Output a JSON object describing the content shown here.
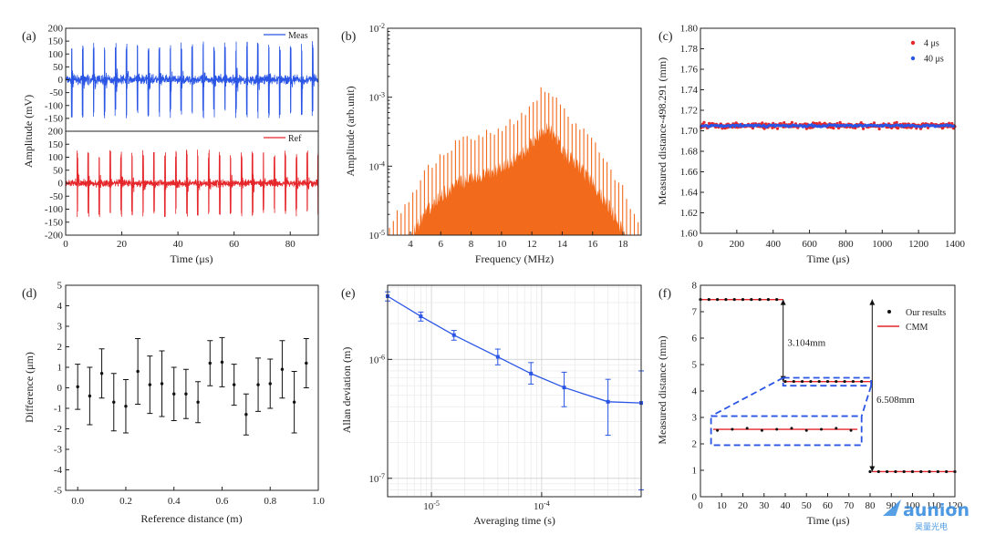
{
  "figure": {
    "panel_labels": [
      "(a)",
      "(b)",
      "(c)",
      "(d)",
      "(e)",
      "(f)"
    ],
    "watermark_text": "aunion",
    "watermark_sub": "昊量光电"
  },
  "chart_data": [
    {
      "panel": "a-top",
      "type": "line",
      "xlabel": "Time (μs)",
      "ylabel": "Amplitude (mV)",
      "xlim": [
        0,
        90
      ],
      "ylim": [
        -200,
        200
      ],
      "xticks": [
        0,
        20,
        40,
        60,
        80
      ],
      "yticks": [
        -200,
        -150,
        -100,
        -50,
        0,
        50,
        100,
        150,
        200
      ],
      "series": [
        {
          "name": "Meas",
          "color": "#2a55e5",
          "description": "pulse train",
          "pulse_period_us": 3.9,
          "first_pulse_us": 2,
          "peak_amplitude_mv": 150,
          "noise_amplitude_mv": 25
        }
      ]
    },
    {
      "panel": "a-bottom",
      "type": "line",
      "xlabel": "Time (μs)",
      "ylabel": "Amplitude (mV)",
      "xlim": [
        0,
        90
      ],
      "ylim": [
        -200,
        200
      ],
      "xticks": [
        0,
        20,
        40,
        60,
        80
      ],
      "yticks": [
        -200,
        -150,
        -100,
        -50,
        0,
        50,
        100,
        150,
        200
      ],
      "series": [
        {
          "name": "Ref",
          "color": "#e5262a",
          "description": "pulse train",
          "pulse_period_us": 3.9,
          "first_pulse_us": 4,
          "peak_amplitude_mv": 130,
          "noise_amplitude_mv": 20
        }
      ]
    },
    {
      "panel": "b",
      "type": "bar",
      "xlabel": "Frequency (MHz)",
      "ylabel": "Amplitude (arb.unit)",
      "xlim": [
        2.5,
        19.2
      ],
      "ylim_log": [
        1e-05,
        0.01
      ],
      "yscale": "log",
      "xticks": [
        4,
        6,
        8,
        10,
        12,
        14,
        16,
        18
      ],
      "ytick_labels": [
        "10-5",
        "10-4",
        "10-3",
        "10-2"
      ],
      "color": "#f26a1b",
      "comb_spacing_mhz": 0.256,
      "peak_envelope": [
        [
          2.6,
          1.3e-05
        ],
        [
          3,
          2e-05
        ],
        [
          4,
          4e-05
        ],
        [
          5,
          9e-05
        ],
        [
          6,
          0.00016
        ],
        [
          7,
          0.00023
        ],
        [
          8,
          0.00029
        ],
        [
          9,
          0.00032
        ],
        [
          10,
          0.0004
        ],
        [
          11,
          0.00055
        ],
        [
          12,
          0.0009
        ],
        [
          12.6,
          0.0014
        ],
        [
          13,
          0.0015
        ],
        [
          13.6,
          0.0011
        ],
        [
          14,
          0.0007
        ],
        [
          15,
          0.00045
        ],
        [
          16,
          0.00025
        ],
        [
          17,
          0.00012
        ],
        [
          18,
          5e-05
        ],
        [
          19,
          2e-05
        ]
      ]
    },
    {
      "panel": "c",
      "type": "scatter",
      "xlabel": "Time (μs)",
      "ylabel": "Measured distance-498.291 (mm)",
      "xlim": [
        0,
        1400
      ],
      "ylim": [
        1.6,
        1.8
      ],
      "xticks": [
        0,
        200,
        400,
        600,
        800,
        1000,
        1200,
        1400
      ],
      "yticks": [
        1.6,
        1.62,
        1.64,
        1.66,
        1.68,
        1.7,
        1.72,
        1.74,
        1.76,
        1.78,
        1.8
      ],
      "ytick_labels": [
        "1.60",
        "1.62",
        "1.64",
        "1.66",
        "1.68",
        "1.70",
        "1.72",
        "1.74",
        "1.76",
        "1.78",
        "1.80"
      ],
      "legend": "top-right",
      "series": [
        {
          "name": "4 μs",
          "color": "#e5262a",
          "mean": 1.705,
          "spread": 0.004,
          "step_us": 4
        },
        {
          "name": "40 μs",
          "color": "#2a55e5",
          "mean": 1.705,
          "spread": 0.0015,
          "step_us": 8
        }
      ]
    },
    {
      "panel": "d",
      "type": "scatter",
      "xlabel": "Reference distance (m)",
      "ylabel": "Difference (μm)",
      "xlim": [
        -0.05,
        1.0
      ],
      "ylim": [
        -5,
        5
      ],
      "xticks": [
        0.0,
        0.2,
        0.4,
        0.6,
        0.8,
        1.0
      ],
      "xtick_labels": [
        "0.0",
        "0.2",
        "0.4",
        "0.6",
        "0.8",
        "1.0"
      ],
      "yticks": [
        -5,
        -4,
        -3,
        -2,
        -1,
        0,
        1,
        2,
        3,
        4,
        5
      ],
      "x": [
        0.0,
        0.05,
        0.1,
        0.15,
        0.2,
        0.25,
        0.3,
        0.35,
        0.4,
        0.45,
        0.5,
        0.55,
        0.6,
        0.65,
        0.7,
        0.75,
        0.8,
        0.85,
        0.9,
        0.95
      ],
      "y": [
        0.05,
        -0.4,
        0.7,
        -0.7,
        -0.9,
        0.8,
        0.15,
        0.2,
        -0.3,
        -0.3,
        -0.7,
        1.2,
        1.25,
        0.15,
        -1.3,
        0.15,
        0.2,
        0.9,
        -0.7,
        1.2
      ],
      "yerr": [
        1.1,
        1.4,
        1.2,
        1.4,
        1.3,
        1.6,
        1.4,
        1.6,
        1.3,
        1.2,
        1.0,
        1.1,
        1.2,
        1.0,
        1.0,
        1.3,
        1.2,
        1.4,
        1.5,
        1.2
      ]
    },
    {
      "panel": "e",
      "type": "line",
      "xlabel": "Averaging time (s)",
      "ylabel": "Allan deviation (m)",
      "xscale": "log",
      "yscale": "log",
      "xlim_log": [
        4e-06,
        0.0008
      ],
      "ylim_log": [
        7e-08,
        4.2e-06
      ],
      "xtick_values": [
        1e-05,
        0.0001
      ],
      "xtick_labels": [
        "10-5",
        "10-4"
      ],
      "ytick_values": [
        1e-07,
        1e-06
      ],
      "ytick_labels": [
        "10-7",
        "10-6"
      ],
      "color": "#2a55e5",
      "x": [
        4e-06,
        8e-06,
        1.6e-05,
        4e-05,
        8e-05,
        0.00016,
        0.0004,
        0.0008
      ],
      "y": [
        3.4e-06,
        2.3e-06,
        1.6e-06,
        1.05e-06,
        7.6e-07,
        5.8e-07,
        4.4e-07,
        4.3e-07
      ],
      "yerr_low": [
        3.1e-06,
        2.1e-06,
        1.45e-06,
        9e-07,
        6.2e-07,
        4e-07,
        2.3e-07,
        8e-08
      ],
      "yerr_high": [
        3.7e-06,
        2.5e-06,
        1.75e-06,
        1.22e-06,
        9.4e-07,
        7.8e-07,
        6.8e-07,
        8e-07
      ]
    },
    {
      "panel": "f",
      "type": "line",
      "xlabel": "Time (μs)",
      "ylabel": "Measured distance (mm)",
      "xlim": [
        0,
        120
      ],
      "ylim": [
        0,
        8
      ],
      "xticks": [
        0,
        10,
        20,
        30,
        40,
        50,
        60,
        70,
        80,
        90,
        100,
        110,
        120
      ],
      "yticks": [
        0,
        1,
        2,
        3,
        4,
        5,
        6,
        7,
        8
      ],
      "legend": "top-right",
      "series": [
        {
          "name": "Our results",
          "color": "#111111",
          "x": [
            0,
            4,
            8,
            12,
            16,
            20,
            24,
            28,
            32,
            36,
            40,
            44,
            48,
            52,
            56,
            60,
            64,
            68,
            72,
            76,
            80,
            84,
            88,
            92,
            96,
            100,
            104,
            108,
            112,
            116,
            120
          ],
          "y": [
            7.46,
            7.46,
            7.46,
            7.46,
            7.46,
            7.46,
            7.46,
            7.46,
            7.46,
            7.46,
            4.36,
            4.36,
            4.36,
            4.36,
            4.36,
            4.36,
            4.36,
            4.36,
            4.36,
            4.36,
            0.95,
            0.95,
            0.95,
            0.95,
            0.95,
            0.95,
            0.95,
            0.95,
            0.95,
            0.95,
            0.95
          ]
        },
        {
          "name": "CMM",
          "color": "#e5262a",
          "segments": [
            [
              0,
              39,
              7.46
            ],
            [
              39,
              81,
              4.356
            ],
            [
              81,
              120,
              0.95
            ]
          ]
        }
      ],
      "annotations": [
        "3.104mm",
        "6.508mm"
      ],
      "steps": [
        [
          39,
          7.46,
          4.356
        ],
        [
          81,
          7.46,
          0.95
        ]
      ]
    }
  ]
}
